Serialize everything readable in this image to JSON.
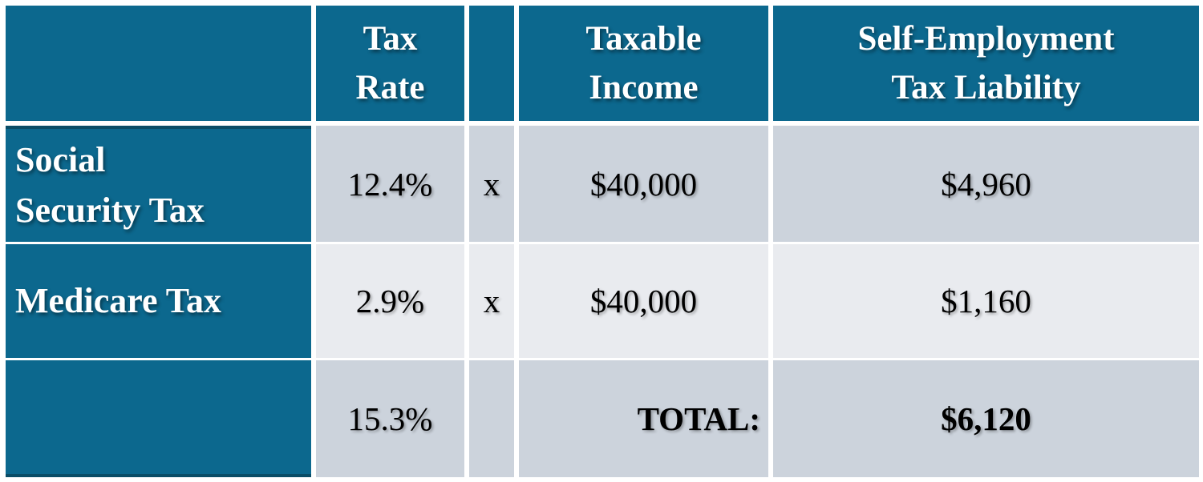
{
  "chart_data": {
    "type": "table",
    "columns": [
      "",
      "Tax Rate",
      "",
      "Taxable Income",
      "Self-Employment Tax Liability"
    ],
    "rows": [
      [
        "Social Security Tax",
        "12.4%",
        "x",
        "$40,000",
        "$4,960"
      ],
      [
        "Medicare Tax",
        "2.9%",
        "x",
        "$40,000",
        "$1,160"
      ],
      [
        "",
        "15.3%",
        "",
        "TOTAL:",
        "$6,120"
      ]
    ],
    "numeric": {
      "tax_rates_pct": [
        12.4,
        2.9,
        15.3
      ],
      "taxable_income": 40000,
      "liabilities": [
        4960,
        1160,
        6120
      ],
      "total_liability": 6120
    },
    "layout": {
      "header_fill": "#0C688E",
      "label_column_fill": "#0C688E",
      "band_row_fill": "#CCD3DC",
      "light_row_fill": "#E9EBEF",
      "gap_color": "#FFFFFF",
      "accent_edge_color": "#0A4D67",
      "header_text_color": "#FFFFFF",
      "body_text_color": "#000000",
      "banded_rows": true,
      "grid": "white separation lines between cells"
    }
  },
  "display": {
    "header": {
      "blank": "",
      "tax_rate": "Tax\nRate",
      "operator": "",
      "taxable_income": "Taxable\nIncome",
      "liability": "Self-Employment\nTax Liability"
    },
    "row_social_security": {
      "label": "Social\nSecurity Tax",
      "rate": "12.4%",
      "op": "x",
      "income": "$40,000",
      "liability": "$4,960"
    },
    "row_medicare": {
      "label": "Medicare Tax",
      "rate": "2.9%",
      "op": "x",
      "income": "$40,000",
      "liability": "$1,160"
    },
    "row_total": {
      "label": "",
      "rate": "15.3%",
      "op": "",
      "total_label": "TOTAL:",
      "liability": "$6,120"
    }
  }
}
